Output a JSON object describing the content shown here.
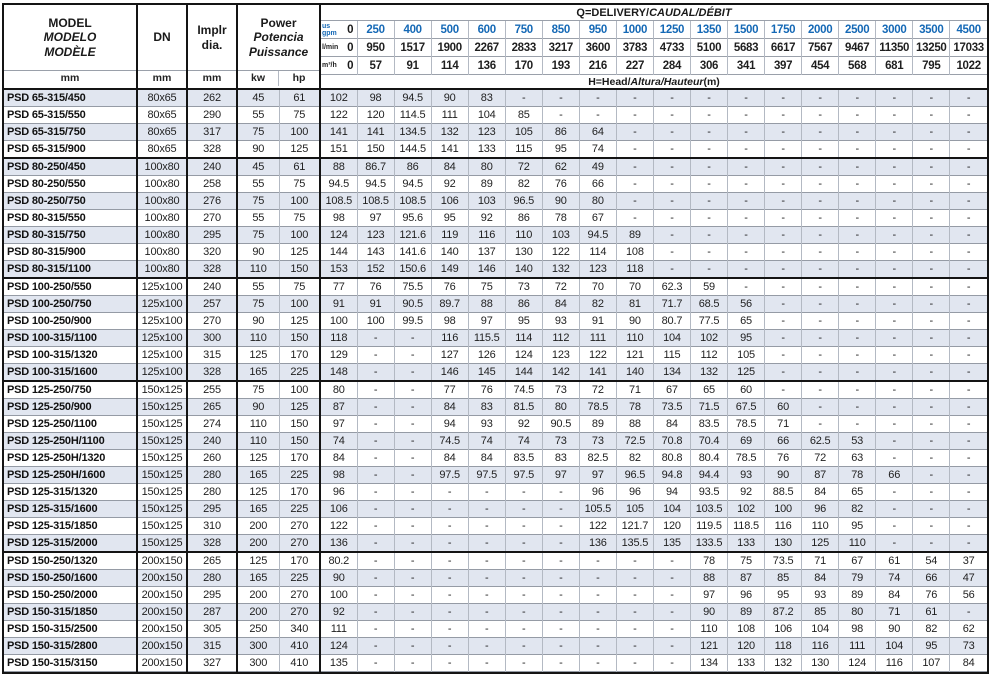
{
  "colors": {
    "accent_blue": "#1569b6",
    "stripe": "#e1e6f0",
    "border_dark": "#141414",
    "border_light": "#b3b9c3"
  },
  "header": {
    "model": {
      "line1": "MODEL",
      "line2": "MODELO",
      "line3": "MODÈLE",
      "unit": "mm"
    },
    "dn": {
      "label": "DN",
      "unit": "mm"
    },
    "impeller": {
      "line1": "Implr",
      "line2": "dia.",
      "unit": "mm"
    },
    "power": {
      "line1": "Power",
      "line2": "Potencia",
      "line3": "Puissance",
      "unit_kw": "kw",
      "unit_hp": "hp"
    },
    "delivery_title": {
      "roman": "Q=DELIVERY/",
      "italic": "CAUDAL/DÉBIT"
    },
    "head_title": {
      "p1": "H=Head/",
      "p2": "Altura/Hauteur",
      "p3": "(m)"
    },
    "flow_rows": [
      {
        "unit_line1": "us",
        "unit_line2": "gpm",
        "zero": "0",
        "blue": true,
        "values": [
          "250",
          "400",
          "500",
          "600",
          "750",
          "850",
          "950",
          "1000",
          "1250",
          "1350",
          "1500",
          "1750",
          "2000",
          "2500",
          "3000",
          "3500",
          "4500"
        ]
      },
      {
        "unit_line1": "l/min",
        "unit_line2": "",
        "zero": "0",
        "blue": false,
        "values": [
          "950",
          "1517",
          "1900",
          "2267",
          "2833",
          "3217",
          "3600",
          "3783",
          "4733",
          "5100",
          "5683",
          "6617",
          "7567",
          "9467",
          "11350",
          "13250",
          "17033"
        ]
      },
      {
        "unit_line1": "m³/h",
        "unit_line2": "",
        "zero": "0",
        "blue": false,
        "values": [
          "57",
          "91",
          "114",
          "136",
          "170",
          "193",
          "216",
          "227",
          "284",
          "306",
          "341",
          "397",
          "454",
          "568",
          "681",
          "795",
          "1022"
        ]
      }
    ]
  },
  "group_breaks_after": [
    3,
    10,
    16,
    26
  ],
  "rows": [
    {
      "model": "PSD 65-315/450",
      "dn": "80x65",
      "impeller": "262",
      "kw": "45",
      "hp": "61",
      "heads": [
        "102",
        "98",
        "94.5",
        "90",
        "83",
        "-",
        "-",
        "-",
        "-",
        "-",
        "-",
        "-",
        "-",
        "-",
        "-",
        "-",
        "-",
        "-"
      ]
    },
    {
      "model": "PSD 65-315/550",
      "dn": "80x65",
      "impeller": "290",
      "kw": "55",
      "hp": "75",
      "heads": [
        "122",
        "120",
        "114.5",
        "111",
        "104",
        "85",
        "-",
        "-",
        "-",
        "-",
        "-",
        "-",
        "-",
        "-",
        "-",
        "-",
        "-",
        "-"
      ]
    },
    {
      "model": "PSD 65-315/750",
      "dn": "80x65",
      "impeller": "317",
      "kw": "75",
      "hp": "100",
      "heads": [
        "141",
        "141",
        "134.5",
        "132",
        "123",
        "105",
        "86",
        "64",
        "-",
        "-",
        "-",
        "-",
        "-",
        "-",
        "-",
        "-",
        "-",
        "-"
      ]
    },
    {
      "model": "PSD 65-315/900",
      "dn": "80x65",
      "impeller": "328",
      "kw": "90",
      "hp": "125",
      "heads": [
        "151",
        "150",
        "144.5",
        "141",
        "133",
        "115",
        "95",
        "74",
        "-",
        "-",
        "-",
        "-",
        "-",
        "-",
        "-",
        "-",
        "-",
        "-"
      ]
    },
    {
      "model": "PSD 80-250/450",
      "dn": "100x80",
      "impeller": "240",
      "kw": "45",
      "hp": "61",
      "heads": [
        "88",
        "86.7",
        "86",
        "84",
        "80",
        "72",
        "62",
        "49",
        "-",
        "-",
        "-",
        "-",
        "-",
        "-",
        "-",
        "-",
        "-",
        "-"
      ]
    },
    {
      "model": "PSD 80-250/550",
      "dn": "100x80",
      "impeller": "258",
      "kw": "55",
      "hp": "75",
      "heads": [
        "94.5",
        "94.5",
        "94.5",
        "92",
        "89",
        "82",
        "76",
        "66",
        "-",
        "-",
        "-",
        "-",
        "-",
        "-",
        "-",
        "-",
        "-",
        "-"
      ]
    },
    {
      "model": "PSD 80-250/750",
      "dn": "100x80",
      "impeller": "276",
      "kw": "75",
      "hp": "100",
      "heads": [
        "108.5",
        "108.5",
        "108.5",
        "106",
        "103",
        "96.5",
        "90",
        "80",
        "-",
        "-",
        "-",
        "-",
        "-",
        "-",
        "-",
        "-",
        "-",
        "-"
      ]
    },
    {
      "model": "PSD 80-315/550",
      "dn": "100x80",
      "impeller": "270",
      "kw": "55",
      "hp": "75",
      "heads": [
        "98",
        "97",
        "95.6",
        "95",
        "92",
        "86",
        "78",
        "67",
        "-",
        "-",
        "-",
        "-",
        "-",
        "-",
        "-",
        "-",
        "-",
        "-"
      ]
    },
    {
      "model": "PSD 80-315/750",
      "dn": "100x80",
      "impeller": "295",
      "kw": "75",
      "hp": "100",
      "heads": [
        "124",
        "123",
        "121.6",
        "119",
        "116",
        "110",
        "103",
        "94.5",
        "89",
        "-",
        "-",
        "-",
        "-",
        "-",
        "-",
        "-",
        "-",
        "-"
      ]
    },
    {
      "model": "PSD 80-315/900",
      "dn": "100x80",
      "impeller": "320",
      "kw": "90",
      "hp": "125",
      "heads": [
        "144",
        "143",
        "141.6",
        "140",
        "137",
        "130",
        "122",
        "114",
        "108",
        "-",
        "-",
        "-",
        "-",
        "-",
        "-",
        "-",
        "-",
        "-"
      ]
    },
    {
      "model": "PSD 80-315/1100",
      "dn": "100x80",
      "impeller": "328",
      "kw": "110",
      "hp": "150",
      "heads": [
        "153",
        "152",
        "150.6",
        "149",
        "146",
        "140",
        "132",
        "123",
        "118",
        "-",
        "-",
        "-",
        "-",
        "-",
        "-",
        "-",
        "-",
        "-"
      ]
    },
    {
      "model": "PSD 100-250/550",
      "dn": "125x100",
      "impeller": "240",
      "kw": "55",
      "hp": "75",
      "heads": [
        "77",
        "76",
        "75.5",
        "76",
        "75",
        "73",
        "72",
        "70",
        "70",
        "62.3",
        "59",
        "-",
        "-",
        "-",
        "-",
        "-",
        "-",
        "-"
      ]
    },
    {
      "model": "PSD 100-250/750",
      "dn": "125x100",
      "impeller": "257",
      "kw": "75",
      "hp": "100",
      "heads": [
        "91",
        "91",
        "90.5",
        "89.7",
        "88",
        "86",
        "84",
        "82",
        "81",
        "71.7",
        "68.5",
        "56",
        "-",
        "-",
        "-",
        "-",
        "-",
        "-"
      ]
    },
    {
      "model": "PSD 100-250/900",
      "dn": "125x100",
      "impeller": "270",
      "kw": "90",
      "hp": "125",
      "heads": [
        "100",
        "100",
        "99.5",
        "98",
        "97",
        "95",
        "93",
        "91",
        "90",
        "80.7",
        "77.5",
        "65",
        "-",
        "-",
        "-",
        "-",
        "-",
        "-"
      ]
    },
    {
      "model": "PSD 100-315/1100",
      "dn": "125x100",
      "impeller": "300",
      "kw": "110",
      "hp": "150",
      "heads": [
        "118",
        "-",
        "-",
        "116",
        "115.5",
        "114",
        "112",
        "111",
        "110",
        "104",
        "102",
        "95",
        "-",
        "-",
        "-",
        "-",
        "-",
        "-"
      ]
    },
    {
      "model": "PSD 100-315/1320",
      "dn": "125x100",
      "impeller": "315",
      "kw": "125",
      "hp": "170",
      "heads": [
        "129",
        "-",
        "-",
        "127",
        "126",
        "124",
        "123",
        "122",
        "121",
        "115",
        "112",
        "105",
        "-",
        "-",
        "-",
        "-",
        "-",
        "-"
      ]
    },
    {
      "model": "PSD 100-315/1600",
      "dn": "125x100",
      "impeller": "328",
      "kw": "165",
      "hp": "225",
      "heads": [
        "148",
        "-",
        "-",
        "146",
        "145",
        "144",
        "142",
        "141",
        "140",
        "134",
        "132",
        "125",
        "-",
        "-",
        "-",
        "-",
        "-",
        "-"
      ]
    },
    {
      "model": "PSD 125-250/750",
      "dn": "150x125",
      "impeller": "255",
      "kw": "75",
      "hp": "100",
      "heads": [
        "80",
        "-",
        "-",
        "77",
        "76",
        "74.5",
        "73",
        "72",
        "71",
        "67",
        "65",
        "60",
        "-",
        "-",
        "-",
        "-",
        "-",
        "-"
      ]
    },
    {
      "model": "PSD 125-250/900",
      "dn": "150x125",
      "impeller": "265",
      "kw": "90",
      "hp": "125",
      "heads": [
        "87",
        "-",
        "-",
        "84",
        "83",
        "81.5",
        "80",
        "78.5",
        "78",
        "73.5",
        "71.5",
        "67.5",
        "60",
        "-",
        "-",
        "-",
        "-",
        "-"
      ]
    },
    {
      "model": "PSD 125-250/1100",
      "dn": "150x125",
      "impeller": "274",
      "kw": "110",
      "hp": "150",
      "heads": [
        "97",
        "-",
        "-",
        "94",
        "93",
        "92",
        "90.5",
        "89",
        "88",
        "84",
        "83.5",
        "78.5",
        "71",
        "-",
        "-",
        "-",
        "-",
        "-"
      ]
    },
    {
      "model": "PSD 125-250H/1100",
      "dn": "150x125",
      "impeller": "240",
      "kw": "110",
      "hp": "150",
      "heads": [
        "74",
        "-",
        "-",
        "74.5",
        "74",
        "74",
        "73",
        "73",
        "72.5",
        "70.8",
        "70.4",
        "69",
        "66",
        "62.5",
        "53",
        "-",
        "-",
        "-"
      ]
    },
    {
      "model": "PSD 125-250H/1320",
      "dn": "150x125",
      "impeller": "260",
      "kw": "125",
      "hp": "170",
      "heads": [
        "84",
        "-",
        "-",
        "84",
        "84",
        "83.5",
        "83",
        "82.5",
        "82",
        "80.8",
        "80.4",
        "78.5",
        "76",
        "72",
        "63",
        "-",
        "-",
        "-"
      ]
    },
    {
      "model": "PSD 125-250H/1600",
      "dn": "150x125",
      "impeller": "280",
      "kw": "165",
      "hp": "225",
      "heads": [
        "98",
        "-",
        "-",
        "97.5",
        "97.5",
        "97.5",
        "97",
        "97",
        "96.5",
        "94.8",
        "94.4",
        "93",
        "90",
        "87",
        "78",
        "66",
        "-",
        "-"
      ]
    },
    {
      "model": "PSD 125-315/1320",
      "dn": "150x125",
      "impeller": "280",
      "kw": "125",
      "hp": "170",
      "heads": [
        "96",
        "-",
        "-",
        "-",
        "-",
        "-",
        "-",
        "96",
        "96",
        "94",
        "93.5",
        "92",
        "88.5",
        "84",
        "65",
        "-",
        "-",
        "-"
      ]
    },
    {
      "model": "PSD 125-315/1600",
      "dn": "150x125",
      "impeller": "295",
      "kw": "165",
      "hp": "225",
      "heads": [
        "106",
        "-",
        "-",
        "-",
        "-",
        "-",
        "-",
        "105.5",
        "105",
        "104",
        "103.5",
        "102",
        "100",
        "96",
        "82",
        "-",
        "-",
        "-"
      ]
    },
    {
      "model": "PSD 125-315/1850",
      "dn": "150x125",
      "impeller": "310",
      "kw": "200",
      "hp": "270",
      "heads": [
        "122",
        "-",
        "-",
        "-",
        "-",
        "-",
        "-",
        "122",
        "121.7",
        "120",
        "119.5",
        "118.5",
        "116",
        "110",
        "95",
        "-",
        "-",
        "-"
      ]
    },
    {
      "model": "PSD 125-315/2000",
      "dn": "150x125",
      "impeller": "328",
      "kw": "200",
      "hp": "270",
      "heads": [
        "136",
        "-",
        "-",
        "-",
        "-",
        "-",
        "-",
        "136",
        "135.5",
        "135",
        "133.5",
        "133",
        "130",
        "125",
        "110",
        "-",
        "-",
        "-"
      ]
    },
    {
      "model": "PSD 150-250/1320",
      "dn": "200x150",
      "impeller": "265",
      "kw": "125",
      "hp": "170",
      "heads": [
        "80.2",
        "-",
        "-",
        "-",
        "-",
        "-",
        "-",
        "-",
        "-",
        "-",
        "78",
        "75",
        "73.5",
        "71",
        "67",
        "61",
        "54",
        "37"
      ]
    },
    {
      "model": "PSD 150-250/1600",
      "dn": "200x150",
      "impeller": "280",
      "kw": "165",
      "hp": "225",
      "heads": [
        "90",
        "-",
        "-",
        "-",
        "-",
        "-",
        "-",
        "-",
        "-",
        "-",
        "88",
        "87",
        "85",
        "84",
        "79",
        "74",
        "66",
        "47"
      ]
    },
    {
      "model": "PSD 150-250/2000",
      "dn": "200x150",
      "impeller": "295",
      "kw": "200",
      "hp": "270",
      "heads": [
        "100",
        "-",
        "-",
        "-",
        "-",
        "-",
        "-",
        "-",
        "-",
        "-",
        "97",
        "96",
        "95",
        "93",
        "89",
        "84",
        "76",
        "56"
      ]
    },
    {
      "model": "PSD 150-315/1850",
      "dn": "200x150",
      "impeller": "287",
      "kw": "200",
      "hp": "270",
      "heads": [
        "92",
        "-",
        "-",
        "-",
        "-",
        "-",
        "-",
        "-",
        "-",
        "-",
        "90",
        "89",
        "87.2",
        "85",
        "80",
        "71",
        "61",
        "-"
      ]
    },
    {
      "model": "PSD 150-315/2500",
      "dn": "200x150",
      "impeller": "305",
      "kw": "250",
      "hp": "340",
      "heads": [
        "111",
        "-",
        "-",
        "-",
        "-",
        "-",
        "-",
        "-",
        "-",
        "-",
        "110",
        "108",
        "106",
        "104",
        "98",
        "90",
        "82",
        "62"
      ]
    },
    {
      "model": "PSD 150-315/2800",
      "dn": "200x150",
      "impeller": "315",
      "kw": "300",
      "hp": "410",
      "heads": [
        "124",
        "-",
        "-",
        "-",
        "-",
        "-",
        "-",
        "-",
        "-",
        "-",
        "121",
        "120",
        "118",
        "116",
        "111",
        "104",
        "95",
        "73"
      ]
    },
    {
      "model": "PSD 150-315/3150",
      "dn": "200x150",
      "impeller": "327",
      "kw": "300",
      "hp": "410",
      "heads": [
        "135",
        "-",
        "-",
        "-",
        "-",
        "-",
        "-",
        "-",
        "-",
        "-",
        "134",
        "133",
        "132",
        "130",
        "124",
        "116",
        "107",
        "84"
      ]
    }
  ]
}
